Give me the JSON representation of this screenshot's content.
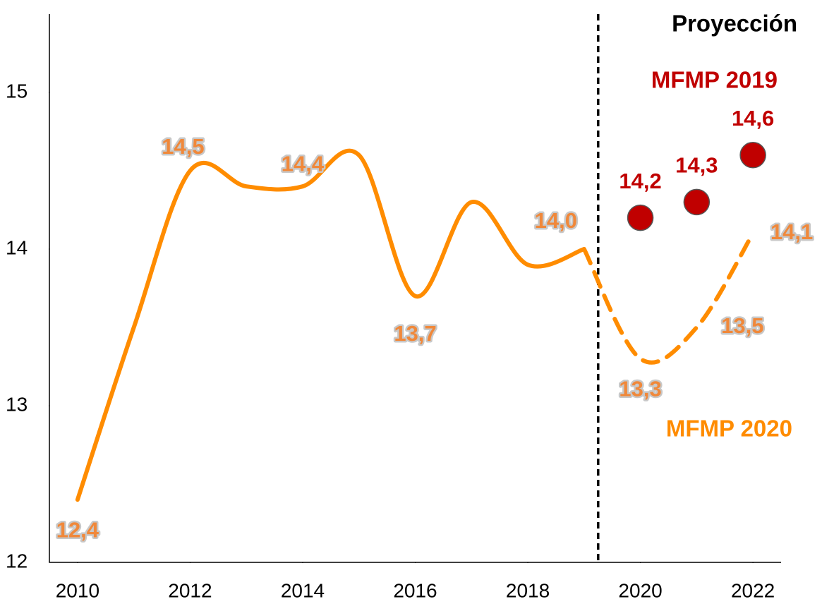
{
  "chart_data": {
    "type": "line",
    "annotation": {
      "text": "Proyección",
      "x": 2019.25
    },
    "series": [
      {
        "color": "#ff8c00",
        "style": "solid",
        "x": [
          2010,
          2011,
          2012,
          2013,
          2014,
          2015,
          2016,
          2017,
          2018,
          2019
        ],
        "values": [
          12.4,
          13.5,
          14.5,
          14.4,
          14.4,
          14.6,
          13.7,
          14.3,
          13.9,
          14.0
        ],
        "value_labels": [
          "12,4",
          null,
          "14,5",
          null,
          "14,4",
          null,
          "13,7",
          null,
          null,
          "14,0"
        ]
      },
      {
        "name": "MFMP 2020",
        "color": "#ff8c00",
        "style": "dashed",
        "x": [
          2019,
          2020,
          2021,
          2022
        ],
        "values": [
          14.0,
          13.3,
          13.5,
          14.1
        ],
        "value_labels": [
          null,
          "13,3",
          "13,5",
          "14,1"
        ]
      },
      {
        "name": "MFMP 2019",
        "color": "#c00000",
        "style": "points",
        "x": [
          2020,
          2021,
          2022
        ],
        "values": [
          14.2,
          14.3,
          14.6
        ],
        "value_labels": [
          "14,2",
          "14,3",
          "14,6"
        ]
      }
    ],
    "xlim": [
      2009.5,
      2022.5
    ],
    "xticks": [
      2010,
      2012,
      2014,
      2016,
      2018,
      2020,
      2022
    ],
    "ylim": [
      12,
      15.5
    ],
    "yticks": [
      12,
      13,
      14,
      15
    ]
  }
}
